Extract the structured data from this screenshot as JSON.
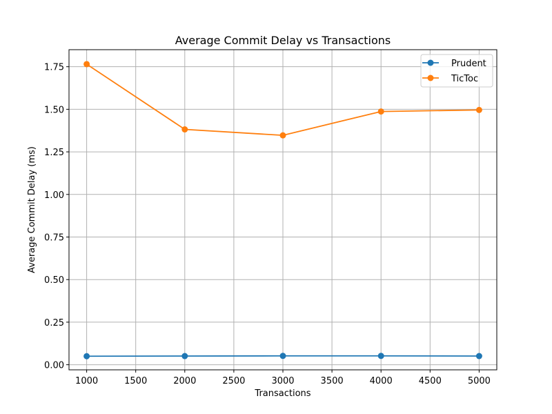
{
  "chart_data": {
    "type": "line",
    "title": "Average Commit Delay vs Transactions",
    "xlabel": "Transactions",
    "ylabel": "Average Commit Delay (ms)",
    "x": [
      1000,
      2000,
      3000,
      4000,
      5000
    ],
    "xlim": [
      820,
      5180
    ],
    "ylim": [
      -0.03,
      1.85
    ],
    "xticks": [
      1000,
      1500,
      2000,
      2500,
      3000,
      3500,
      4000,
      4500,
      5000
    ],
    "yticks": [
      0.0,
      0.25,
      0.5,
      0.75,
      1.0,
      1.25,
      1.5,
      1.75
    ],
    "xtick_labels": [
      "1000",
      "1500",
      "2000",
      "2500",
      "3000",
      "3500",
      "4000",
      "4500",
      "5000"
    ],
    "ytick_labels": [
      "0.00",
      "0.25",
      "0.50",
      "0.75",
      "1.00",
      "1.25",
      "1.50",
      "1.75"
    ],
    "grid": true,
    "legend_position": "top-right",
    "series": [
      {
        "name": "Prudent",
        "color": "#1f77b4",
        "marker": "circle",
        "values": [
          0.05,
          0.051,
          0.052,
          0.052,
          0.051
        ]
      },
      {
        "name": "TicToc",
        "color": "#ff7f0e",
        "marker": "circle",
        "values": [
          1.765,
          1.382,
          1.347,
          1.487,
          1.496
        ]
      }
    ]
  }
}
